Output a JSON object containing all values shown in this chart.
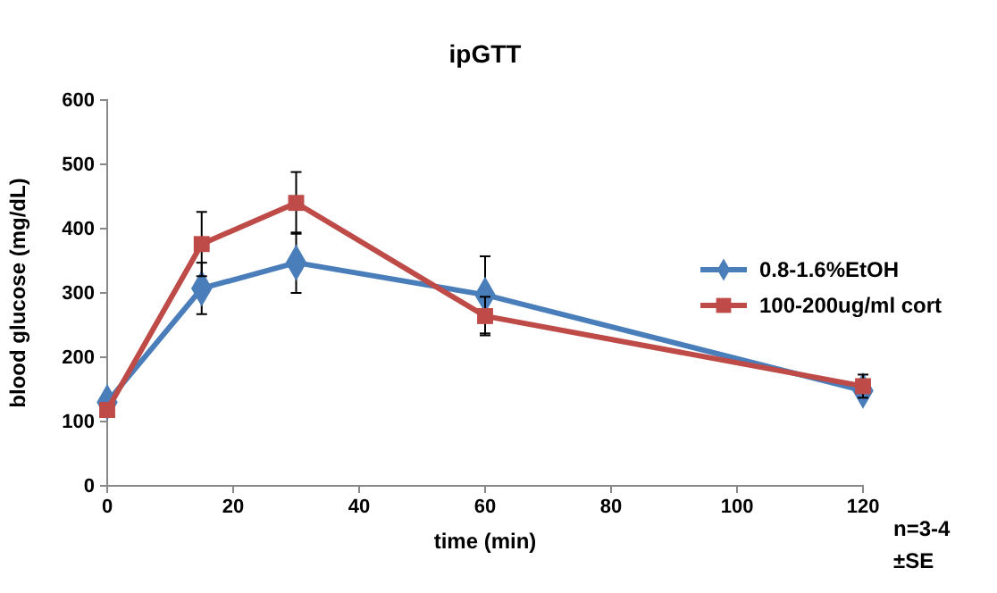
{
  "chart_data": {
    "type": "line",
    "title": "ipGTT",
    "xlabel": "time (min)",
    "ylabel": "blood glucose (mg/dL)",
    "x": [
      0,
      15,
      30,
      60,
      120
    ],
    "series": [
      {
        "name": "0.8-1.6%EtOH",
        "color": "#4a7ebb",
        "marker": "diamond",
        "values": [
          130,
          307,
          347,
          297,
          148
        ],
        "errors": [
          8,
          40,
          47,
          60,
          10
        ]
      },
      {
        "name": "100-200ug/ml cort",
        "color": "#be4b48",
        "marker": "square",
        "values": [
          118,
          376,
          440,
          264,
          155
        ],
        "errors": [
          10,
          50,
          48,
          30,
          18
        ]
      }
    ],
    "xlim": [
      0,
      120
    ],
    "xticks": [
      0,
      20,
      40,
      60,
      80,
      100,
      120
    ],
    "ylim": [
      0,
      600
    ],
    "yticks": [
      0,
      100,
      200,
      300,
      400,
      500,
      600
    ],
    "grid": false,
    "legend": "right",
    "annotations": [
      "n=3-4",
      "±SE"
    ]
  }
}
